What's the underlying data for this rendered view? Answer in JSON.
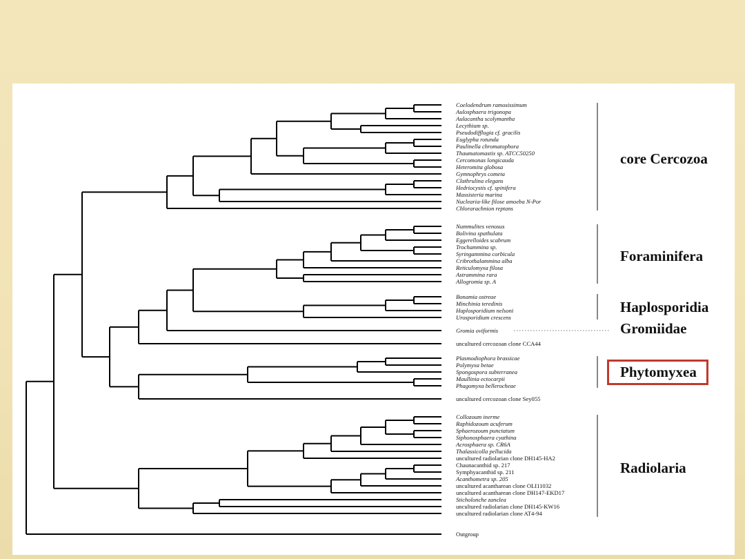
{
  "taxa": [
    {
      "id": "t1",
      "label": "Coelodendrum ramosissimum",
      "italic": true
    },
    {
      "id": "t2",
      "label": "Aulosphaera trigonopa",
      "italic": true
    },
    {
      "id": "t3",
      "label": "Aulacantha scolymantha",
      "italic": true
    },
    {
      "id": "t4",
      "label": "Lecythium sp.",
      "italic": true
    },
    {
      "id": "t5",
      "label": "Pseudodifflugia cf. gracilis",
      "italic": true
    },
    {
      "id": "t6",
      "label": "Euglypha rotunda",
      "italic": true
    },
    {
      "id": "t7",
      "label": "Paulinella chromatophora",
      "italic": true
    },
    {
      "id": "t8",
      "label": "Thaumatomastix sp. ATCC50250",
      "italic": true
    },
    {
      "id": "t9",
      "label": "Cercomonas longicauda",
      "italic": true
    },
    {
      "id": "t10",
      "label": "Heteromita globosa",
      "italic": true
    },
    {
      "id": "t11",
      "label": "Gymnophrys cometa",
      "italic": true
    },
    {
      "id": "t12",
      "label": "Clathrulina elegans",
      "italic": true
    },
    {
      "id": "t13",
      "label": "Hedriocystis cf. spinifera",
      "italic": true
    },
    {
      "id": "t14",
      "label": "Massisteria marina",
      "italic": true
    },
    {
      "id": "t15",
      "label": "Nuclearia-like filose amoeba N-Por",
      "italic": true
    },
    {
      "id": "t16",
      "label": "Chlorarachnion reptans",
      "italic": true
    },
    {
      "id": "t17",
      "label": "Nummulites venosus",
      "italic": true
    },
    {
      "id": "t18",
      "label": "Bolivina spathulata",
      "italic": true
    },
    {
      "id": "t19",
      "label": "Eggerelloides scabrum",
      "italic": true
    },
    {
      "id": "t20",
      "label": "Trochammina sp.",
      "italic": true
    },
    {
      "id": "t21",
      "label": "Syringammina corbicula",
      "italic": true
    },
    {
      "id": "t22",
      "label": "Cribrothalammina alba",
      "italic": true
    },
    {
      "id": "t23",
      "label": "Reticulomyxa filosa",
      "italic": true
    },
    {
      "id": "t24",
      "label": "Astrammina rara",
      "italic": true
    },
    {
      "id": "t25",
      "label": "Allogromia sp. A",
      "italic": true
    },
    {
      "id": "t26",
      "label": "Bonamia ostreae",
      "italic": true
    },
    {
      "id": "t27",
      "label": "Minchinia teredinis",
      "italic": true
    },
    {
      "id": "t28",
      "label": "Haplosporidium nelsoni",
      "italic": true
    },
    {
      "id": "t29",
      "label": "Urosporidium crescens",
      "italic": true
    },
    {
      "id": "t30",
      "label": "Gromia oviformis",
      "italic": true
    },
    {
      "id": "t31",
      "label": "uncultured cercozoan clone CCA44",
      "italic": false
    },
    {
      "id": "t32",
      "label": "Plasmodiophora brassicae",
      "italic": true
    },
    {
      "id": "t33",
      "label": "Polymyxa betae",
      "italic": true
    },
    {
      "id": "t34",
      "label": "Spongospora subterranea",
      "italic": true
    },
    {
      "id": "t35",
      "label": "Maullinia ectocarpii",
      "italic": true
    },
    {
      "id": "t36",
      "label": "Phagomyxa bellerocheae",
      "italic": true
    },
    {
      "id": "t37",
      "label": "uncultured cercozoan clone Sey055",
      "italic": false
    },
    {
      "id": "t38",
      "label": "Collozoum inerme",
      "italic": true
    },
    {
      "id": "t39",
      "label": "Raphidozoum acuferum",
      "italic": true
    },
    {
      "id": "t40",
      "label": "Sphaerozoum punctatum",
      "italic": true
    },
    {
      "id": "t41",
      "label": "Siphonosphaera cyathina",
      "italic": true
    },
    {
      "id": "t42",
      "label": "Acrosphaera sp. CR6A",
      "italic": true
    },
    {
      "id": "t43",
      "label": "Thalassicolla pellucida",
      "italic": true
    },
    {
      "id": "t44",
      "label": "uncultured radiolarian clone DH145-HA2",
      "italic": false
    },
    {
      "id": "t45",
      "label": "Chaunacanthid sp. 217",
      "italic": false
    },
    {
      "id": "t46",
      "label": "Symphyacanthid sp. 211",
      "italic": false
    },
    {
      "id": "t47",
      "label": "Acanthometra sp. 205",
      "italic": true
    },
    {
      "id": "t48",
      "label": "uncultured acantharean clone OLI11032",
      "italic": false
    },
    {
      "id": "t49",
      "label": "uncultured acantharean clone DH147-EKD17",
      "italic": false
    },
    {
      "id": "t50",
      "label": "Sticholonche zanclea",
      "italic": true
    },
    {
      "id": "t51",
      "label": "uncultured radiolarian clone DH145-KW16",
      "italic": false
    },
    {
      "id": "t52",
      "label": "uncultured radiolarian clone AT4-94",
      "italic": false
    },
    {
      "id": "t53",
      "label": "Outgroup",
      "italic": false
    }
  ],
  "groups": [
    {
      "id": "core-cercozoa",
      "label": "core Cercozoa",
      "highlighted": false
    },
    {
      "id": "foraminifera",
      "label": "Foraminifera",
      "highlighted": false
    },
    {
      "id": "haplosporidia",
      "label": "Haplosporidia",
      "highlighted": false
    },
    {
      "id": "gromiidae",
      "label": "Gromiidae",
      "highlighted": false
    },
    {
      "id": "phytomyxea",
      "label": "Phytomyxea",
      "highlighted": true
    },
    {
      "id": "radiolaria",
      "label": "Radiolaria",
      "highlighted": false
    }
  ],
  "colors": {
    "background": "#f2e4b8",
    "highlight_border": "#c0392b",
    "branch": "#000000"
  }
}
